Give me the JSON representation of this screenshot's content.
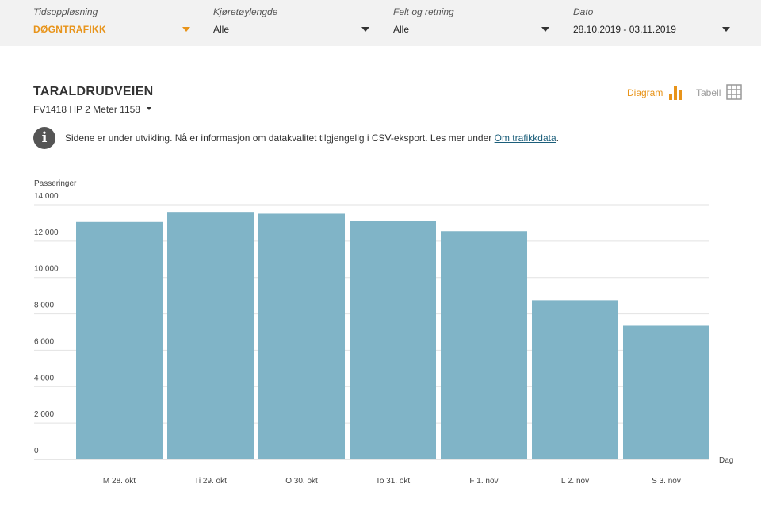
{
  "filters": [
    {
      "label": "Tidsoppløsning",
      "value": "DØGNTRAFIKK",
      "accent": true
    },
    {
      "label": "Kjøretøylengde",
      "value": "Alle",
      "accent": false
    },
    {
      "label": "Felt og retning",
      "value": "Alle",
      "accent": false
    },
    {
      "label": "Dato",
      "value": "28.10.2019 - 03.11.2019",
      "accent": false
    }
  ],
  "header": {
    "title": "TARALDRUDVEIEN",
    "subtitle": "FV1418 HP 2 Meter 1158"
  },
  "view_toggle": {
    "diagram_label": "Diagram",
    "table_label": "Tabell",
    "active": "Diagram"
  },
  "info": {
    "text": "Sidene er under utvikling. Nå er informasjon om datakvalitet tilgjengelig i CSV-eksport. Les mer under ",
    "link_text": "Om trafikkdata",
    "suffix": "."
  },
  "colors": {
    "accent": "#e8941a",
    "bar": "#80b4c7",
    "link": "#1b5e7a"
  },
  "chart_data": {
    "type": "bar",
    "ylabel": "Passeringer",
    "xlabel": "Dag",
    "ylim": [
      0,
      14000
    ],
    "yticks": [
      0,
      2000,
      4000,
      6000,
      8000,
      10000,
      12000,
      14000
    ],
    "ytick_labels": [
      "0",
      "2 000",
      "4 000",
      "6 000",
      "8 000",
      "10 000",
      "12 000",
      "14 000"
    ],
    "grid": true,
    "categories": [
      "M 28. okt",
      "Ti 29. okt",
      "O 30. okt",
      "To 31. okt",
      "F 1. nov",
      "L 2. nov",
      "S 3. nov"
    ],
    "values": [
      13050,
      13600,
      13500,
      13100,
      12550,
      8750,
      7350
    ]
  }
}
